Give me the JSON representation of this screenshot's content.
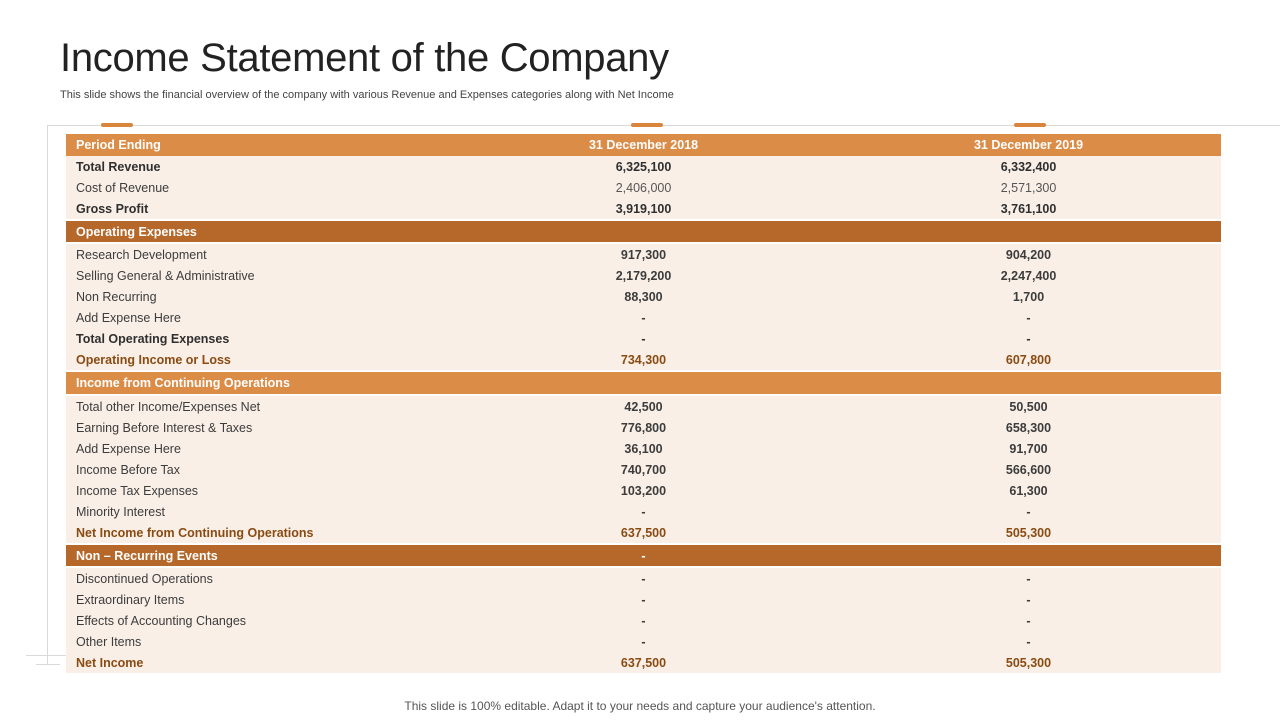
{
  "slide": {
    "title": "Income Statement of the Company",
    "subtitle": "This slide shows the financial overview of the company with various Revenue and Expenses categories along with Net Income",
    "footer": "This slide is 100% editable. Adapt it to your needs and capture your audience's attention."
  },
  "colors": {
    "header_light": "#db8c47",
    "header_dark": "#b5682a",
    "row_bg": "#f9efe7"
  },
  "table": {
    "header": [
      "Period Ending",
      "31 December 2018",
      "31 December 2019"
    ],
    "rows": [
      {
        "style": "bold",
        "cells": [
          "Total Revenue",
          "6,325,100",
          "6,332,400"
        ]
      },
      {
        "style": "normal",
        "cells": [
          "Cost of Revenue",
          "2,406,000",
          "2,571,300"
        ]
      },
      {
        "style": "bold",
        "cells": [
          "Gross Profit",
          "3,919,100",
          "3,761,100"
        ]
      },
      {
        "style": "section-dark",
        "cells": [
          "Operating Expenses",
          "",
          ""
        ]
      },
      {
        "style": "mixed",
        "cells": [
          "Research Development",
          "917,300",
          "904,200"
        ]
      },
      {
        "style": "mixed",
        "cells": [
          "Selling General & Administrative",
          "2,179,200",
          "2,247,400"
        ]
      },
      {
        "style": "mixed",
        "cells": [
          "Non Recurring",
          "88,300",
          "1,700"
        ]
      },
      {
        "style": "mixed",
        "cells": [
          "Add Expense Here",
          "-",
          "-"
        ]
      },
      {
        "style": "bold",
        "cells": [
          "Total Operating Expenses",
          "-",
          "-"
        ]
      },
      {
        "style": "amber",
        "cells": [
          "Operating Income or Loss",
          "734,300",
          "607,800"
        ]
      },
      {
        "style": "section-light",
        "cells": [
          "Income from Continuing Operations",
          "",
          ""
        ]
      },
      {
        "style": "mixed",
        "cells": [
          "Total other Income/Expenses Net",
          "42,500",
          "50,500"
        ]
      },
      {
        "style": "mixed",
        "cells": [
          "Earning Before Interest & Taxes",
          "776,800",
          "658,300"
        ]
      },
      {
        "style": "mixed",
        "cells": [
          "Add Expense Here",
          "36,100",
          "91,700"
        ]
      },
      {
        "style": "mixed",
        "cells": [
          "Income Before Tax",
          "740,700",
          "566,600"
        ]
      },
      {
        "style": "mixed",
        "cells": [
          "Income Tax Expenses",
          "103,200",
          "61,300"
        ]
      },
      {
        "style": "mixed",
        "cells": [
          "Minority Interest",
          "-",
          "-"
        ]
      },
      {
        "style": "amber",
        "cells": [
          "Net Income from Continuing Operations",
          "637,500",
          "505,300"
        ]
      },
      {
        "style": "section-dark",
        "cells": [
          "Non – Recurring Events",
          "-",
          ""
        ]
      },
      {
        "style": "mixed",
        "cells": [
          "Discontinued Operations",
          "-",
          "-"
        ]
      },
      {
        "style": "mixed",
        "cells": [
          "Extraordinary Items",
          "-",
          "-"
        ]
      },
      {
        "style": "mixed",
        "cells": [
          "Effects of Accounting Changes",
          "-",
          "-"
        ]
      },
      {
        "style": "mixed",
        "cells": [
          "Other Items",
          "-",
          "-"
        ]
      },
      {
        "style": "amber",
        "cells": [
          "Net Income",
          "637,500",
          "505,300"
        ]
      }
    ]
  }
}
